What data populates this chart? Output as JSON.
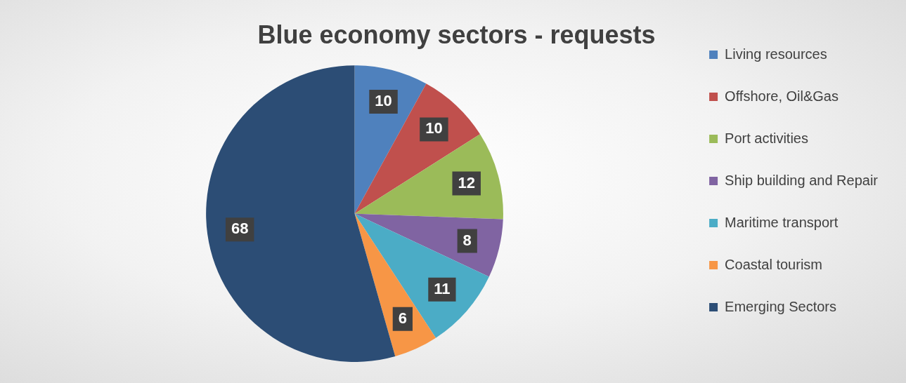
{
  "chart_data": {
    "type": "pie",
    "title": "Blue economy sectors - requests",
    "categories": [
      "Living resources",
      "Offshore, Oil&Gas",
      "Port activities",
      "Ship building and Repair",
      "Maritime transport",
      "Coastal tourism",
      "Emerging Sectors"
    ],
    "values": [
      10,
      10,
      12,
      8,
      11,
      6,
      68
    ],
    "colors": [
      "#4f81bd",
      "#c0504d",
      "#9bbb59",
      "#8064a2",
      "#4bacc6",
      "#f79646",
      "#2c4d75"
    ],
    "data_labels": true,
    "legend": "right"
  }
}
